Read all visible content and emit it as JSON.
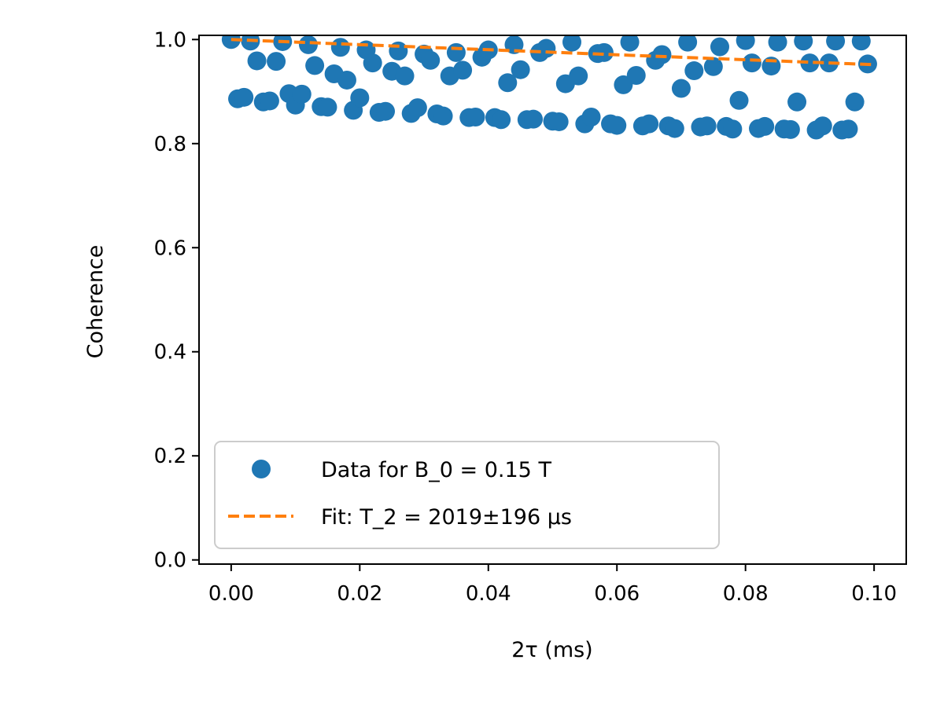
{
  "chart_data": {
    "type": "scatter",
    "xlabel": "2τ (ms)",
    "ylabel": "Coherence",
    "xlim": [
      -0.005,
      0.105
    ],
    "ylim": [
      -0.008,
      1.008
    ],
    "xticks": [
      "0.00",
      "0.02",
      "0.04",
      "0.06",
      "0.08",
      "0.10"
    ],
    "xtick_values": [
      0.0,
      0.02,
      0.04,
      0.06,
      0.08,
      0.1
    ],
    "yticks": [
      "0.0",
      "0.2",
      "0.4",
      "0.6",
      "0.8",
      "1.0"
    ],
    "ytick_values": [
      0.0,
      0.2,
      0.4,
      0.6,
      0.8,
      1.0
    ],
    "grid": false,
    "legend_position": "lower-left",
    "series": [
      {
        "name": "Data for B_0 = 0.15 T",
        "kind": "scatter",
        "color": "#1f77b4",
        "x_start": 0.0,
        "x_step": 0.001,
        "y": [
          1.0,
          0.886,
          0.889,
          0.997,
          0.959,
          0.88,
          0.882,
          0.958,
          0.996,
          0.896,
          0.874,
          0.895,
          0.99,
          0.95,
          0.871,
          0.87,
          0.934,
          0.985,
          0.922,
          0.864,
          0.888,
          0.98,
          0.955,
          0.86,
          0.862,
          0.939,
          0.978,
          0.93,
          0.858,
          0.869,
          0.972,
          0.96,
          0.857,
          0.853,
          0.93,
          0.975,
          0.941,
          0.85,
          0.851,
          0.966,
          0.98,
          0.85,
          0.846,
          0.917,
          0.99,
          0.942,
          0.846,
          0.847,
          0.975,
          0.983,
          0.843,
          0.842,
          0.915,
          0.995,
          0.93,
          0.838,
          0.851,
          0.973,
          0.975,
          0.838,
          0.835,
          0.913,
          0.995,
          0.931,
          0.834,
          0.838,
          0.96,
          0.971,
          0.834,
          0.829,
          0.906,
          0.995,
          0.94,
          0.832,
          0.834,
          0.948,
          0.986,
          0.833,
          0.828,
          0.883,
          0.998,
          0.955,
          0.829,
          0.833,
          0.949,
          0.995,
          0.828,
          0.827,
          0.88,
          0.997,
          0.955,
          0.826,
          0.834,
          0.955,
          0.997,
          0.826,
          0.828,
          0.88,
          0.997,
          0.953
        ]
      },
      {
        "name": "Fit: T_2 = 2019±196 µs",
        "kind": "line",
        "color": "#ff7f0e",
        "dash": "dashed",
        "T2_us": 2019,
        "x_range": [
          0.0,
          0.1
        ]
      }
    ]
  }
}
